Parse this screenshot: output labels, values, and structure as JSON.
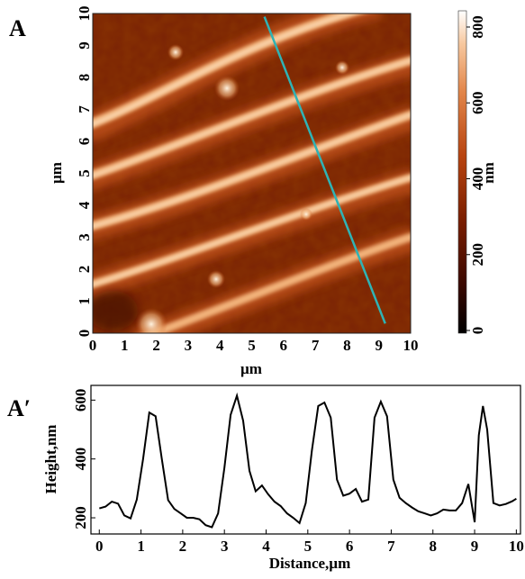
{
  "panel_a": {
    "label": "A",
    "x_axis": {
      "label": "µm",
      "ticks": [
        "0",
        "1",
        "2",
        "3",
        "4",
        "5",
        "6",
        "7",
        "8",
        "9",
        "10"
      ]
    },
    "y_axis": {
      "label": "µm",
      "ticks": [
        "0",
        "1",
        "2",
        "3",
        "4",
        "5",
        "6",
        "7",
        "8",
        "9",
        "10"
      ]
    },
    "colorbar": {
      "label": "nm",
      "ticks": [
        "0",
        "200",
        "400",
        "600",
        "800"
      ],
      "colors": [
        "#000000",
        "#3a0800",
        "#7a1e00",
        "#b84410",
        "#e2864a",
        "#f7c9a0",
        "#ffffff"
      ]
    },
    "scan_line_color": "#2fb3b5",
    "scan_line": {
      "start_um": [
        5.4,
        9.9
      ],
      "end_um": [
        9.2,
        0.3
      ]
    },
    "image_description_colors": {
      "dark": "#5a1400",
      "mid": "#a83a08",
      "bright": "#f6cc98"
    }
  },
  "chart_data": {
    "type": "line",
    "panel_label": "A′",
    "title": "",
    "xlabel": "Distance,µm",
    "ylabel": "Height,nm",
    "xlim": [
      -0.2,
      10.1
    ],
    "ylim": [
      145,
      650
    ],
    "xticks": [
      0,
      1,
      2,
      3,
      4,
      5,
      6,
      7,
      8,
      9,
      10
    ],
    "yticks": [
      200,
      400,
      600
    ],
    "series": [
      {
        "x": [
          0.0,
          0.15,
          0.3,
          0.45,
          0.6,
          0.75,
          0.9,
          1.05,
          1.2,
          1.35,
          1.5,
          1.65,
          1.8,
          1.95,
          2.1,
          2.25,
          2.4,
          2.55,
          2.7,
          2.85,
          3.0,
          3.15,
          3.3,
          3.45,
          3.6,
          3.75,
          3.9,
          4.05,
          4.2,
          4.35,
          4.5,
          4.65,
          4.8,
          4.95,
          5.1,
          5.25,
          5.4,
          5.55,
          5.7,
          5.85,
          6.0,
          6.15,
          6.3,
          6.45,
          6.6,
          6.75,
          6.9,
          7.05,
          7.2,
          7.35,
          7.5,
          7.65,
          7.8,
          7.95,
          8.1,
          8.25,
          8.4,
          8.55,
          8.7,
          8.85,
          9.0,
          9.1,
          9.2,
          9.3,
          9.45,
          9.6,
          9.75,
          9.9,
          10.0
        ],
        "y": [
          232,
          238,
          255,
          248,
          208,
          198,
          262,
          400,
          558,
          545,
          400,
          260,
          230,
          215,
          200,
          200,
          195,
          175,
          168,
          215,
          370,
          550,
          615,
          530,
          360,
          290,
          310,
          280,
          255,
          240,
          215,
          200,
          182,
          250,
          430,
          580,
          592,
          540,
          330,
          275,
          282,
          298,
          255,
          262,
          540,
          595,
          545,
          330,
          268,
          250,
          235,
          222,
          215,
          208,
          215,
          228,
          225,
          225,
          250,
          315,
          185,
          480,
          580,
          500,
          250,
          242,
          247,
          256,
          265
        ]
      }
    ]
  }
}
